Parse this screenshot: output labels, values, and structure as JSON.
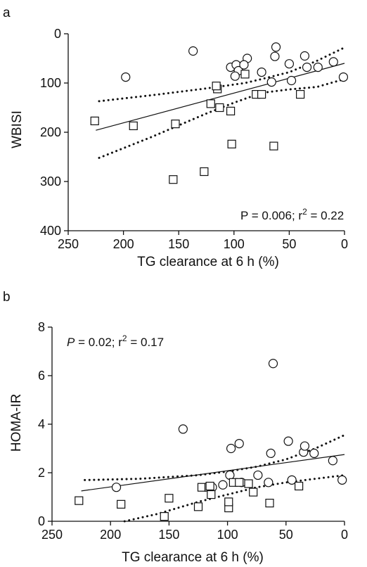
{
  "chart_data": [
    {
      "panel": "a",
      "type": "scatter",
      "xlabel": "TG clearance at 6 h (%)",
      "ylabel": "WBISI",
      "xlim": [
        250,
        0
      ],
      "ylim": [
        400,
        0
      ],
      "x_reversed": true,
      "y_reversed": true,
      "xticks": [
        "250",
        "200",
        "150",
        "100",
        "50",
        "0"
      ],
      "yticks": [
        "0",
        "100",
        "200",
        "300",
        "400"
      ],
      "annotation": {
        "p_part": "P = 0.006; r",
        "sup": "2",
        "val": " = 0.22"
      },
      "series": [
        {
          "marker": "circle",
          "points": [
            [
              198,
              88
            ],
            [
              137,
              35
            ],
            [
              103,
              68
            ],
            [
              98,
              63
            ],
            [
              96,
              75
            ],
            [
              88,
              50
            ],
            [
              99,
              86
            ],
            [
              91,
              63
            ],
            [
              75,
              78
            ],
            [
              66,
              98
            ],
            [
              62,
              27
            ],
            [
              63,
              46
            ],
            [
              50,
              61
            ],
            [
              48,
              95
            ],
            [
              36,
              45
            ],
            [
              34,
              68
            ],
            [
              24,
              68
            ],
            [
              10,
              57
            ],
            [
              1,
              88
            ]
          ]
        },
        {
          "marker": "square",
          "points": [
            [
              226,
              177
            ],
            [
              191,
              187
            ],
            [
              153,
              183
            ],
            [
              155,
              296
            ],
            [
              127,
              280
            ],
            [
              121,
              142
            ],
            [
              115,
              112
            ],
            [
              116,
              106
            ],
            [
              113,
              150
            ],
            [
              103,
              157
            ],
            [
              102,
              224
            ],
            [
              90,
              82
            ],
            [
              80,
              123
            ],
            [
              75,
              123
            ],
            [
              64,
              228
            ],
            [
              40,
              123
            ]
          ]
        }
      ],
      "fit": {
        "x": [
          225,
          0
        ],
        "y": [
          196,
          60
        ]
      },
      "ci_upper": {
        "x": [
          222,
          175,
          125,
          90,
          75,
          50,
          25,
          0
        ],
        "y": [
          137,
          125,
          111,
          100,
          92,
          78,
          55,
          28
        ]
      },
      "ci_lower": {
        "x": [
          222,
          175,
          125,
          100,
          75,
          50,
          25,
          0
        ],
        "y": [
          252,
          210,
          162,
          140,
          120,
          113,
          108,
          92
        ]
      }
    },
    {
      "panel": "b",
      "type": "scatter",
      "xlabel": "TG clearance at 6 h (%)",
      "ylabel": "HOMA-IR",
      "xlim": [
        250,
        0
      ],
      "ylim": [
        0,
        8
      ],
      "x_reversed": true,
      "y_reversed": false,
      "xticks": [
        "250",
        "200",
        "150",
        "100",
        "50",
        "0"
      ],
      "yticks": [
        "0",
        "2",
        "4",
        "6",
        "8"
      ],
      "annotation": {
        "p_part": "P",
        "p_rest": " = 0.02; r",
        "sup": "2",
        "val": " = 0.17"
      },
      "series": [
        {
          "marker": "circle",
          "points": [
            [
              195,
              1.4
            ],
            [
              138,
              3.8
            ],
            [
              113,
              1.4
            ],
            [
              104,
              1.5
            ],
            [
              98,
              1.9
            ],
            [
              97,
              3.0
            ],
            [
              90,
              3.2
            ],
            [
              88,
              1.6
            ],
            [
              74,
              1.9
            ],
            [
              65,
              1.6
            ],
            [
              63,
              2.8
            ],
            [
              61,
              6.5
            ],
            [
              48,
              3.3
            ],
            [
              45,
              1.7
            ],
            [
              35,
              2.85
            ],
            [
              34,
              3.1
            ],
            [
              26,
              2.8
            ],
            [
              10,
              2.5
            ],
            [
              2,
              1.7
            ]
          ]
        },
        {
          "marker": "square",
          "points": [
            [
              227,
              0.85
            ],
            [
              191,
              0.7
            ],
            [
              154,
              0.2
            ],
            [
              150,
              0.95
            ],
            [
              125,
              0.6
            ],
            [
              122,
              1.4
            ],
            [
              116,
              1.4
            ],
            [
              115,
              1.45
            ],
            [
              114,
              1.1
            ],
            [
              99,
              0.55
            ],
            [
              99,
              0.8
            ],
            [
              95,
              1.6
            ],
            [
              90,
              1.6
            ],
            [
              82,
              1.55
            ],
            [
              78,
              1.2
            ],
            [
              64,
              0.75
            ],
            [
              39,
              1.45
            ]
          ]
        }
      ],
      "fit": {
        "x": [
          225,
          0
        ],
        "y": [
          1.25,
          2.75
        ]
      },
      "ci_upper": {
        "x": [
          222,
          175,
          125,
          100,
          75,
          50,
          25,
          0
        ],
        "y": [
          1.7,
          1.75,
          1.9,
          2.05,
          2.25,
          2.55,
          3.0,
          3.55
        ]
      },
      "ci_lower": {
        "x": [
          188,
          160,
          125,
          100,
          75,
          50,
          25,
          0
        ],
        "y": [
          0.0,
          0.3,
          0.8,
          1.1,
          1.4,
          1.6,
          1.75,
          1.9
        ]
      }
    }
  ],
  "colors": {
    "ink": "#111111",
    "background": "#ffffff"
  }
}
